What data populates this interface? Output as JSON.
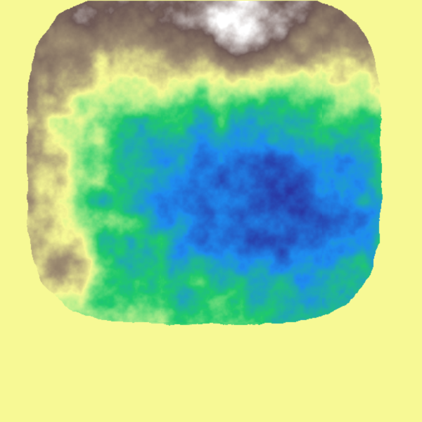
{
  "map": {
    "type": "terrain-heightmap",
    "colormap": "terrain",
    "background_color": "#f7f995",
    "palette": {
      "deep_water": "#2a2f9c",
      "shallow_water": "#1e8cf0",
      "low_land": "#1fc96b",
      "mid_land": "#b8ee8d",
      "coast": "#f7f995",
      "hills": "#a08f73",
      "mountains": "#6f5a56",
      "peaks": "#ffffff"
    }
  }
}
